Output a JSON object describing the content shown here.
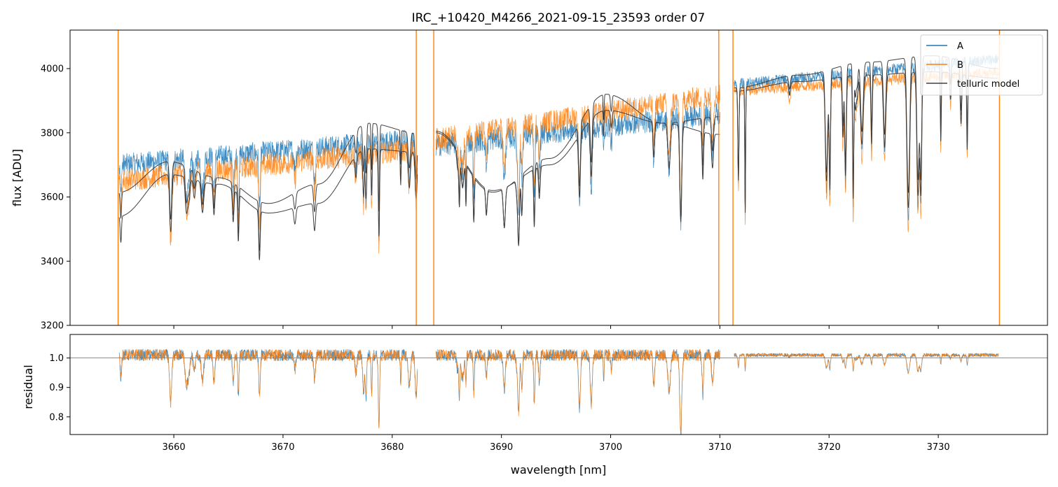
{
  "chart_data": [
    {
      "type": "line",
      "panel": "main",
      "title": "IRC_+10420_M4266_2021-09-15_23593  order 07",
      "xlabel": "",
      "ylabel": "flux [ADU]",
      "xlim": [
        3650.5,
        3740
      ],
      "ylim": [
        3200,
        4120
      ],
      "xticks": [
        3660,
        3670,
        3680,
        3690,
        3700,
        3710,
        3720,
        3730
      ],
      "yticks": [
        3200,
        3400,
        3600,
        3800,
        4000
      ],
      "legend_position": "top-right",
      "legend": [
        "A",
        "B",
        "telluric model"
      ],
      "colors": {
        "A": "#1f77b4",
        "B": "#ff7f0e",
        "telluric model": "#404040"
      },
      "segments": [
        {
          "x_range": [
            3655.0,
            3682.3
          ],
          "A_level": [
            3700,
            3780
          ],
          "B_level": [
            3650,
            3750
          ],
          "model_A": [
            3615,
            3710,
            3660,
            3580,
            3640,
            3830,
            3800
          ],
          "model_B": [
            3540,
            3670,
            3640,
            3550,
            3580,
            3750,
            3740
          ]
        },
        {
          "x_range": [
            3684.0,
            3710.0
          ],
          "A_level": [
            3760,
            3860
          ],
          "B_level": [
            3780,
            3920
          ],
          "model_A": [
            3805,
            3620,
            3700,
            3870,
            3830,
            3795
          ],
          "model_B": [
            3800,
            3615,
            3720,
            3920,
            3830,
            3850
          ]
        },
        {
          "x_range": [
            3711.3,
            3735.5
          ],
          "A_level": [
            3950,
            4030
          ],
          "B_level": [
            3930,
            3990
          ],
          "model_A": [
            3940,
            3980,
            4020,
            4040,
            4000
          ],
          "model_B": [
            3930,
            3960,
            3980,
            3990,
            3970
          ]
        }
      ],
      "spikes_x": [
        3654.9,
        3682.2,
        3683.8,
        3709.9,
        3711.2,
        3735.6
      ]
    },
    {
      "type": "line",
      "panel": "residual",
      "xlabel": "wavelength [nm]",
      "ylabel": "residual",
      "xlim": [
        3650.5,
        3740
      ],
      "ylim": [
        0.74,
        1.08
      ],
      "yticks": [
        0.8,
        0.9,
        1.0
      ],
      "reference_line": 1.0,
      "xticks": [
        3660,
        3670,
        3680,
        3690,
        3700,
        3710,
        3720,
        3730
      ]
    }
  ]
}
